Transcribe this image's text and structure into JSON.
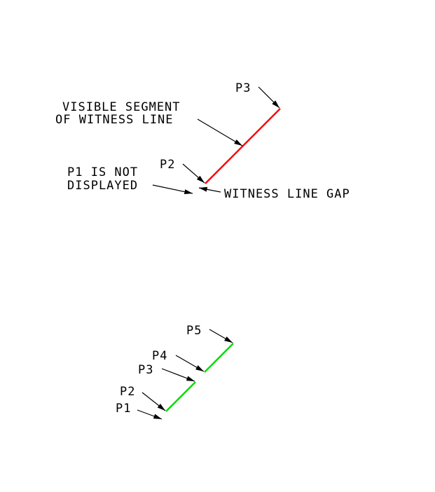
{
  "diagram": {
    "colors": {
      "background": "#ffffff",
      "text": "#000000",
      "visible_segment": "#ff0000",
      "gap_segments": "#00dd00"
    },
    "top": {
      "label_p3": "P3",
      "label_p2": "P2",
      "label_visible_line1": "VISIBLE SEGMENT",
      "label_visible_line2": "OF WITNESS LINE",
      "label_p1_line1": "P1 IS NOT",
      "label_p1_line2": "DISPLAYED",
      "label_gap": "WITNESS LINE GAP"
    },
    "bottom": {
      "label_p5": "P5",
      "label_p4": "P4",
      "label_p3": "P3",
      "label_p2": "P2",
      "label_p1": "P1"
    }
  }
}
